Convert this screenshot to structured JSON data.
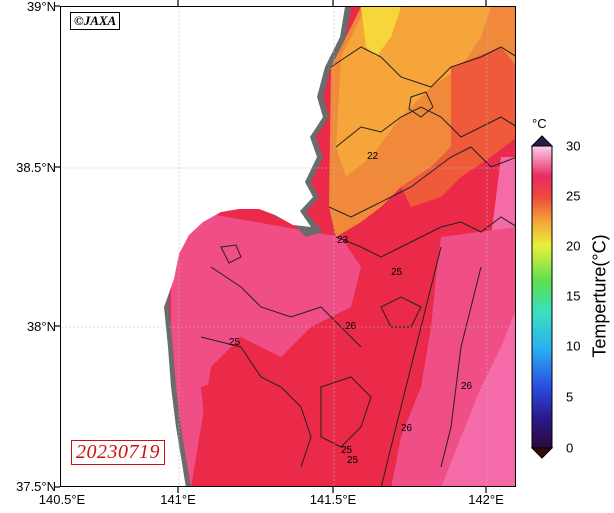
{
  "credit": "©JAXA",
  "date": "20230719",
  "lat_labels": [
    "39°N",
    "38.5°N",
    "38°N",
    "37.5°N"
  ],
  "lon_labels": [
    "140.5°E",
    "141°E",
    "141.5°E",
    "142°E"
  ],
  "colorbar": {
    "unit": "°C",
    "title": "Temperture(°C)",
    "ticks": [
      "30",
      "25",
      "20",
      "15",
      "10",
      "5",
      "0"
    ]
  },
  "contour_labels": [
    "22",
    "23",
    "25",
    "25",
    "26",
    "26",
    "26",
    "25",
    "25"
  ],
  "colors": {
    "land": "#ffffff",
    "coast_shadow": "#6b6b6b",
    "sst_22": "#f5a53a",
    "sst_23": "#f08a3a",
    "sst_24": "#ee5a3a",
    "sst_25": "#ea2a48",
    "sst_26": "#f04e86",
    "sst_27": "#f56aa8",
    "sst_21": "#f7d63a",
    "date_red": "#d01010"
  }
}
